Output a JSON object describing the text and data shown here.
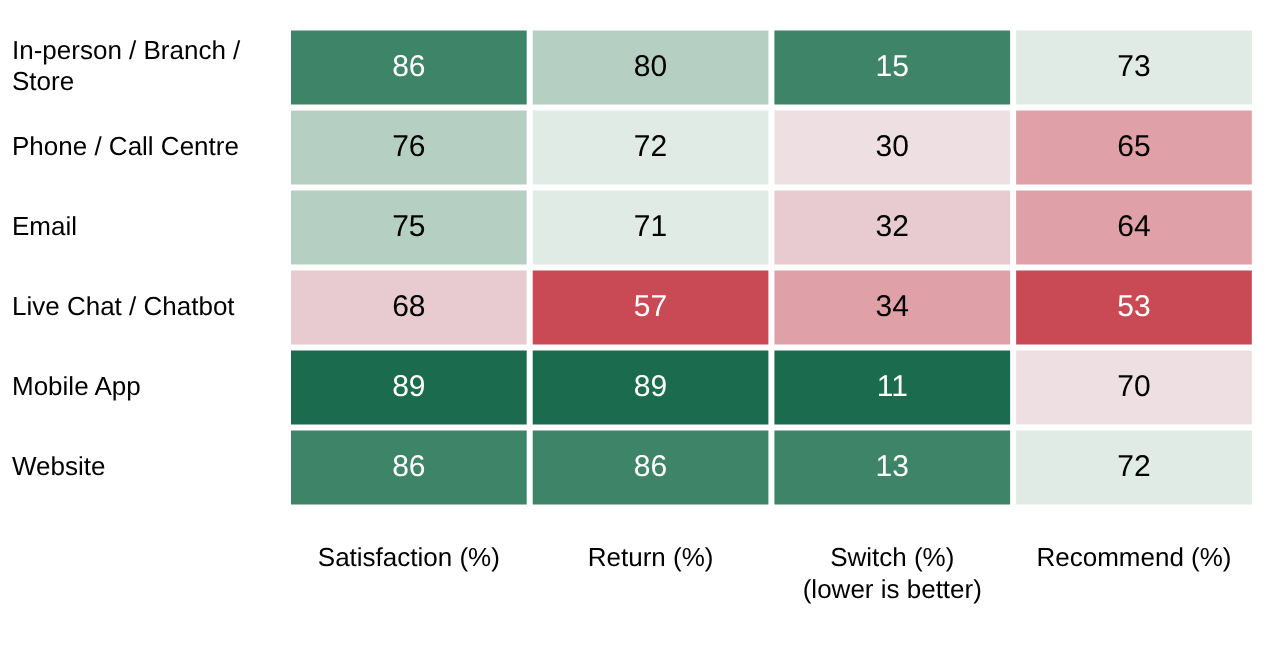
{
  "chart_data": {
    "type": "heatmap",
    "categories": [
      "Satisfaction (%)",
      "Return (%)",
      "Switch (%)\n(lower is better)",
      "Recommend (%)"
    ],
    "y_categories": [
      "In-person / Branch / Store",
      "Phone / Call Centre",
      "Email",
      "Live Chat / Chatbot",
      "Mobile App",
      "Website"
    ],
    "cells": [
      [
        86,
        80,
        15,
        73
      ],
      [
        76,
        72,
        30,
        65
      ],
      [
        75,
        71,
        32,
        64
      ],
      [
        68,
        57,
        34,
        53
      ],
      [
        89,
        89,
        11,
        70
      ],
      [
        86,
        86,
        13,
        72
      ]
    ],
    "colors": [
      [
        "#3d8468",
        "#b5cfc3",
        "#3d8468",
        "#dfebe4"
      ],
      [
        "#b5cfc3",
        "#dfebe4",
        "#eee0e2",
        "#e0a0a7"
      ],
      [
        "#b5cfc3",
        "#dfebe4",
        "#e8cbd0",
        "#e0a0a7"
      ],
      [
        "#e8cbd0",
        "#c94a55",
        "#e0a0a7",
        "#c94a55"
      ],
      [
        "#1b6b4e",
        "#1b6b4e",
        "#1b6b4e",
        "#eee0e2"
      ],
      [
        "#3d8468",
        "#3d8468",
        "#3d8468",
        "#dfebe4"
      ]
    ],
    "data_labels": true,
    "grid": false,
    "legend": false
  }
}
